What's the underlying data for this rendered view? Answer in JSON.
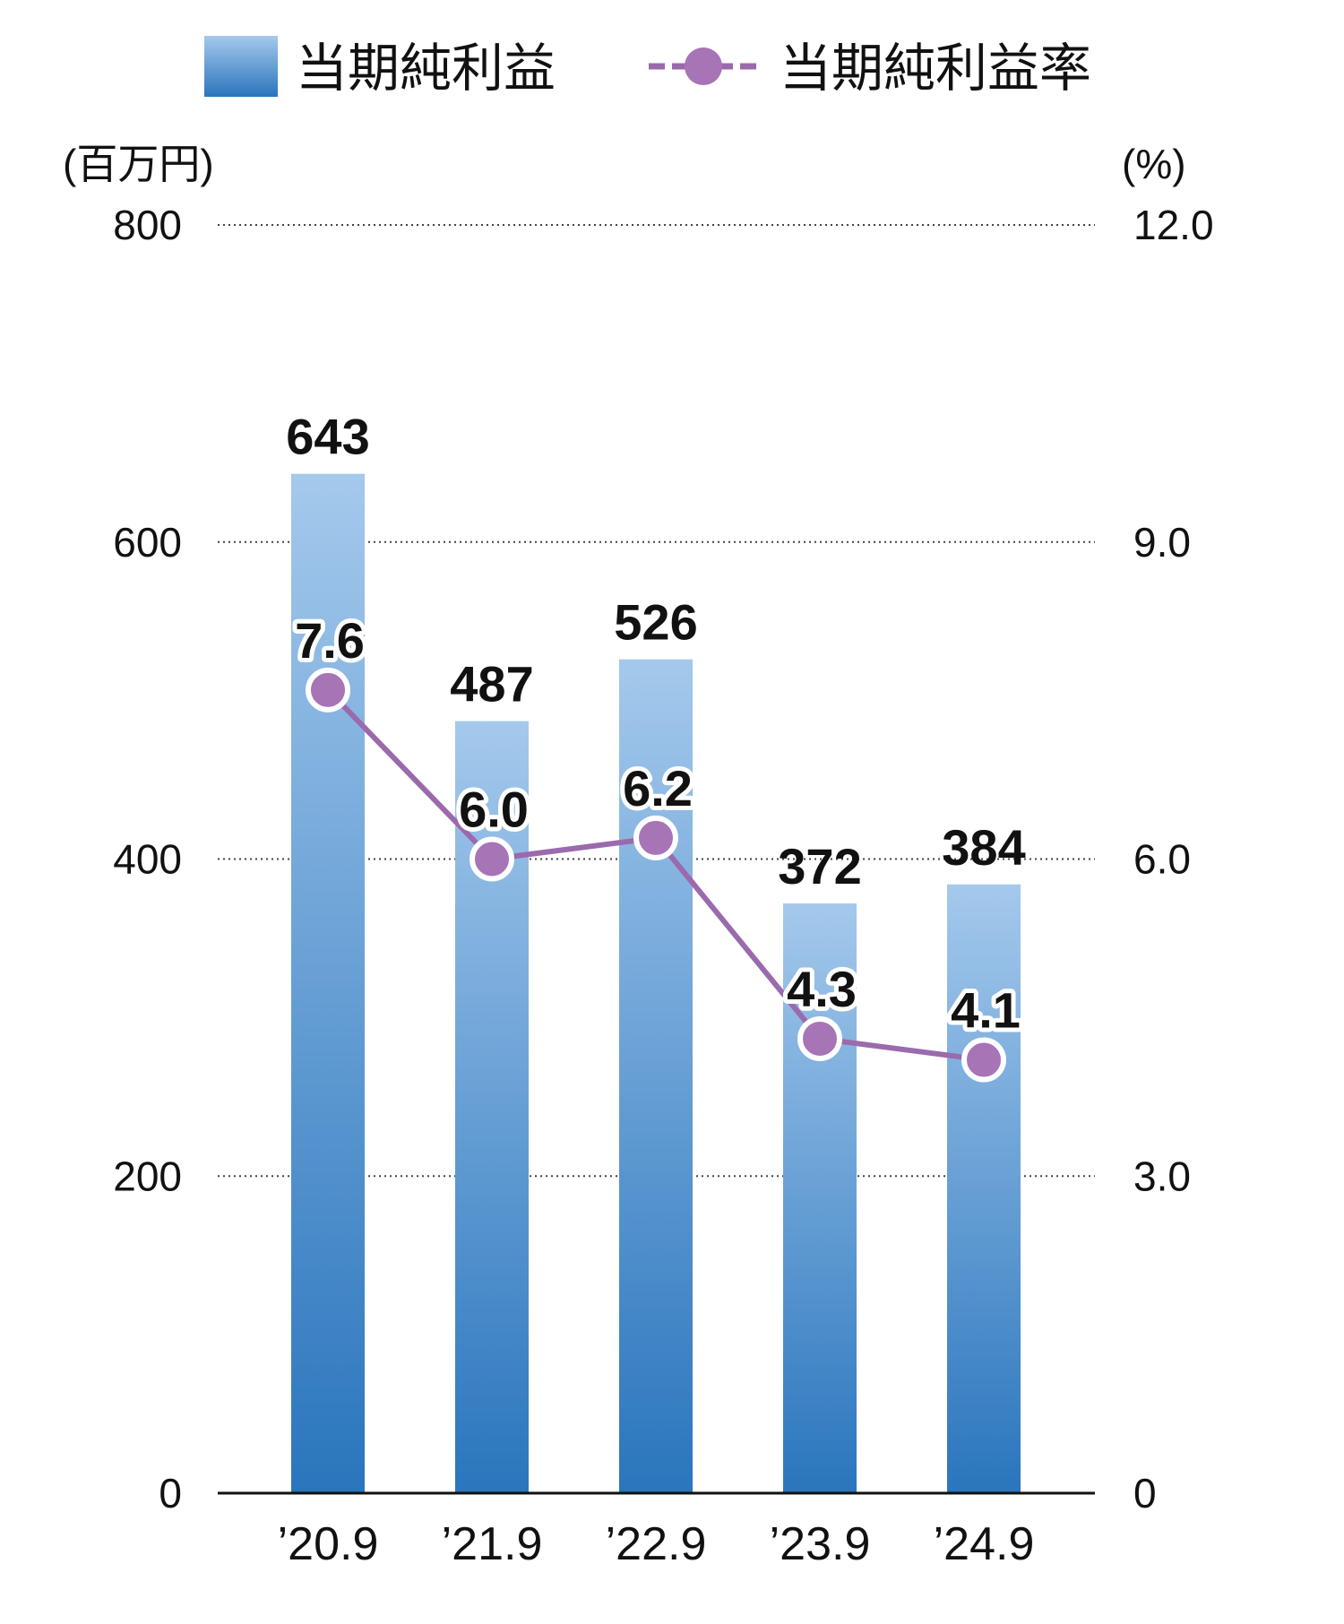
{
  "legend": {
    "bar_label": "当期純利益",
    "line_label": "当期純利益率"
  },
  "axes": {
    "left_unit": "(百万円)",
    "right_unit": "(%)"
  },
  "colors": {
    "bar_top": "#a4c9ec",
    "bar_bottom": "#2a75bd",
    "line": "#9b6aac",
    "marker_fill": "#a774b5",
    "marker_stroke": "#ffffff",
    "grid": "#444444",
    "baseline": "#111111"
  },
  "chart_data": {
    "type": "bar",
    "categories": [
      "’20.9",
      "’21.9",
      "’22.9",
      "’23.9",
      "’24.9"
    ],
    "series": [
      {
        "name": "当期純利益",
        "type": "bar",
        "axis": "left",
        "values": [
          643,
          487,
          526,
          372,
          384
        ],
        "labels": [
          "643",
          "487",
          "526",
          "372",
          "384"
        ]
      },
      {
        "name": "当期純利益率",
        "type": "line",
        "axis": "right",
        "values": [
          7.6,
          6.0,
          6.2,
          4.3,
          4.1
        ],
        "labels": [
          "7.6",
          "6.0",
          "6.2",
          "4.3",
          "4.1"
        ]
      }
    ],
    "y_left": {
      "unit": "(百万円)",
      "ylim": [
        0,
        800
      ],
      "ticks": [
        0,
        200,
        400,
        600,
        800
      ],
      "tick_labels": [
        "0",
        "200",
        "400",
        "600",
        "800"
      ]
    },
    "y_right": {
      "unit": "(%)",
      "ylim": [
        0,
        12
      ],
      "ticks": [
        0,
        3,
        6,
        9,
        12
      ],
      "tick_labels": [
        "0",
        "3.0",
        "6.0",
        "9.0",
        "12.0"
      ]
    },
    "grid": "dotted horizontal",
    "legend_position": "top"
  }
}
